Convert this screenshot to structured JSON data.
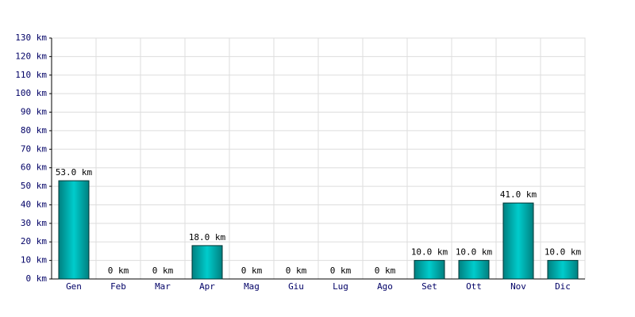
{
  "chart_data": {
    "type": "bar",
    "categories": [
      "Gen",
      "Feb",
      "Mar",
      "Apr",
      "Mag",
      "Giu",
      "Lug",
      "Ago",
      "Set",
      "Ott",
      "Nov",
      "Dic"
    ],
    "values": [
      53,
      0,
      0,
      18,
      0,
      0,
      0,
      0,
      10,
      10,
      41,
      10
    ],
    "value_labels": [
      "53.0 km",
      "0 km",
      "0 km",
      "18.0 km",
      "0 km",
      "0 km",
      "0 km",
      "0 km",
      "10.0 km",
      "10.0 km",
      "41.0 km",
      "10.0 km"
    ],
    "color": "#00cccc",
    "ylim": [
      0,
      130
    ],
    "yticks": [
      {
        "value": 0,
        "label": "0 km"
      },
      {
        "value": 10,
        "label": "10 km"
      },
      {
        "value": 20,
        "label": "20 km"
      },
      {
        "value": 30,
        "label": "30 km"
      },
      {
        "value": 40,
        "label": "40 km"
      },
      {
        "value": 50,
        "label": "50 km"
      },
      {
        "value": 60,
        "label": "60 km"
      },
      {
        "value": 70,
        "label": "70 km"
      },
      {
        "value": 80,
        "label": "80 km"
      },
      {
        "value": 90,
        "label": "90 km"
      },
      {
        "value": 100,
        "label": "100 km"
      },
      {
        "value": 110,
        "label": "110 km"
      },
      {
        "value": 120,
        "label": "120 km"
      },
      {
        "value": 130,
        "label": "130 km"
      }
    ],
    "grid": true
  }
}
